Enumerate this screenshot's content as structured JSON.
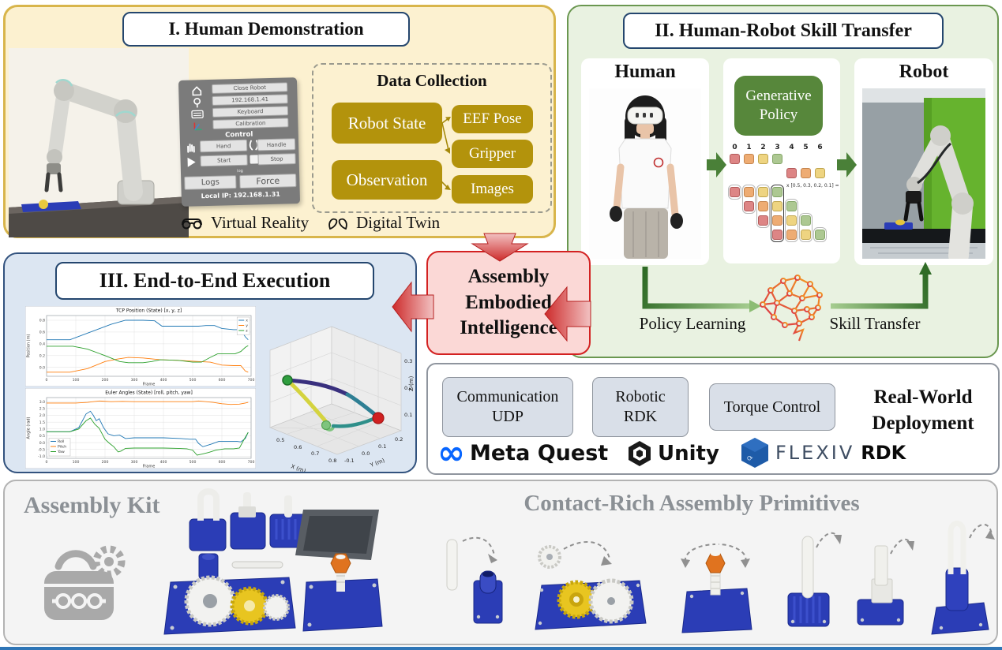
{
  "colors": {
    "panel1_bg": "#fcf1d0",
    "panel1_border": "#d8b54b",
    "panel2_bg": "#e9f2e1",
    "panel2_border": "#6a9750",
    "panel3_bg": "#dce6f2",
    "panel3_border": "#32527e",
    "assembly_bg": "#fbd8d6",
    "assembly_border": "#d32121",
    "gold_box": "#b3930c",
    "green_policy_box": "#57873b",
    "token_red": "#dd8585",
    "token_orange": "#eeac73",
    "token_yellow": "#eed481",
    "token_green": "#adc892",
    "deploy_module_bg": "#d9dfe8",
    "meta_blue": "#0866ff",
    "flexiv_blue": "#1e5ba8",
    "arrow_red": "#cd2b2b",
    "arrow_green_dark": "#33691e",
    "bottom_title_gray": "#8b9095"
  },
  "panel1": {
    "title": "I. Human Demonstration",
    "vr_panel": {
      "top_buttons": [
        "Close Robot",
        "192.168.1.41",
        "Keyboard",
        "Calibration"
      ],
      "control_label": "Control",
      "hand": "Hand",
      "handle": "Handle",
      "start": "Start",
      "stop": "Stop",
      "log_label": "log",
      "logs": "Logs",
      "force": "Force",
      "local_ip": "Local IP: 192.168.1.31"
    },
    "data_collection": {
      "title": "Data Collection",
      "robot_state": "Robot State",
      "eef_pose": "EEF Pose",
      "gripper": "Gripper",
      "observation": "Observation",
      "images": "Images"
    },
    "captions": {
      "virtual_reality": "Virtual Reality",
      "digital_twin": "Digital Twin"
    }
  },
  "panel2": {
    "title": "II. Human-Robot Skill Transfer",
    "human_label": "Human",
    "robot_label": "Robot",
    "generative_policy_lines": [
      "Generative",
      "Policy"
    ],
    "policy_diagram": {
      "indices": [
        "0",
        "1",
        "2",
        "3",
        "4",
        "5",
        "6"
      ],
      "top_row_colors": [
        "red",
        "orange",
        "yellow",
        "green"
      ],
      "second_row_colors": [
        "red",
        "orange",
        "yellow"
      ],
      "weights_text": "x [0.5, 0.3, 0.2, 0.1] =",
      "columns": [
        {
          "start": 0,
          "colors": [
            "red"
          ]
        },
        {
          "start": 0,
          "colors": [
            "orange",
            "red"
          ]
        },
        {
          "start": 0,
          "colors": [
            "yellow",
            "orange",
            "red"
          ]
        },
        {
          "start": 0,
          "colors": [
            "green",
            "yellow",
            "orange",
            "red"
          ],
          "highlight": true
        },
        {
          "start": 1,
          "colors": [
            "green",
            "yellow",
            "orange"
          ]
        },
        {
          "start": 2,
          "colors": [
            "green",
            "yellow"
          ]
        },
        {
          "start": 3,
          "colors": [
            "green"
          ]
        }
      ]
    },
    "policy_learning": "Policy Learning",
    "skill_transfer": "Skill Transfer"
  },
  "panel3": {
    "title": "III. End-to-End Execution"
  },
  "assembly_box": {
    "lines": [
      "Assembly",
      "Embodied",
      "Intelligence"
    ]
  },
  "deployment": {
    "modules": [
      {
        "lines": [
          "Communication",
          "UDP"
        ]
      },
      {
        "lines": [
          "Robotic",
          "RDK"
        ]
      },
      {
        "lines": [
          "Torque Control"
        ]
      }
    ],
    "label_lines": [
      "Real-World",
      "Deployment"
    ],
    "logos": {
      "meta": "Meta Quest",
      "unity": "Unity",
      "flexiv": "FLEXIV",
      "flexiv_rdk": "RDK"
    }
  },
  "bottom": {
    "assembly_kit_title": "Assembly Kit",
    "primitives_title": "Contact-Rich Assembly Primitives"
  },
  "chart_data": [
    {
      "id": "tcp",
      "type": "line",
      "title": "TCP Position (State) [x, y, z]",
      "xlabel": "Frame",
      "ylabel": "Position (m)",
      "xlim": [
        0,
        700
      ],
      "ylim": [
        -0.15,
        0.88
      ],
      "xticks": [
        0,
        100,
        200,
        300,
        400,
        500,
        600,
        700
      ],
      "yticks": [
        "0.0",
        "0.2",
        "0.4",
        "0.6",
        "0.8"
      ],
      "legend": "tr",
      "grid": true,
      "series": [
        {
          "name": "x",
          "color": "#1f77b4",
          "x": [
            0,
            80,
            150,
            220,
            270,
            330,
            370,
            395,
            450,
            520,
            545,
            575,
            600,
            640,
            665,
            680,
            690
          ],
          "y": [
            0.47,
            0.47,
            0.6,
            0.73,
            0.8,
            0.8,
            0.79,
            0.7,
            0.7,
            0.7,
            0.71,
            0.71,
            0.66,
            0.64,
            0.64,
            0.52,
            0.47
          ]
        },
        {
          "name": "y",
          "color": "#ff7f0e",
          "x": [
            0,
            80,
            140,
            200,
            240,
            280,
            330,
            390,
            450,
            520,
            560,
            600,
            640,
            665,
            680,
            690
          ],
          "y": [
            -0.08,
            -0.08,
            -0.02,
            0.1,
            0.14,
            0.17,
            0.16,
            0.13,
            0.12,
            0.1,
            0.09,
            0.04,
            0.03,
            0.03,
            -0.06,
            -0.08
          ]
        },
        {
          "name": "z",
          "color": "#2ca02c",
          "x": [
            0,
            90,
            140,
            200,
            250,
            280,
            330,
            360,
            390,
            450,
            500,
            530,
            560,
            585,
            620,
            645,
            665,
            680,
            690
          ],
          "y": [
            0.36,
            0.36,
            0.31,
            0.2,
            0.1,
            0.08,
            0.08,
            0.1,
            0.13,
            0.12,
            0.09,
            0.09,
            0.17,
            0.23,
            0.23,
            0.23,
            0.27,
            0.34,
            0.37
          ]
        }
      ]
    },
    {
      "id": "euler",
      "type": "line",
      "title": "Euler Angles (State) [roll, pitch, yaw]",
      "xlabel": "Frame",
      "ylabel": "Angle (rad)",
      "xlim": [
        0,
        700
      ],
      "ylim": [
        -1.15,
        3.3
      ],
      "xticks": [
        0,
        100,
        200,
        300,
        400,
        500,
        600,
        700
      ],
      "yticks": [
        "-1.0",
        "-0.5",
        "0.0",
        "0.5",
        "1.0",
        "1.5",
        "2.0",
        "2.5",
        "3.0"
      ],
      "legend": "bl",
      "grid": true,
      "series": [
        {
          "name": "Roll",
          "color": "#1f77b4",
          "x": [
            0,
            80,
            110,
            135,
            150,
            160,
            170,
            180,
            195,
            210,
            230,
            250,
            270,
            300,
            350,
            400,
            460,
            490,
            510,
            520,
            535,
            550,
            565,
            590,
            620,
            650,
            665,
            680,
            690
          ],
          "y": [
            0.8,
            0.8,
            1.1,
            2.1,
            2.3,
            2.0,
            1.6,
            1.75,
            1.1,
            0.65,
            0.5,
            0.55,
            0.3,
            0.35,
            0.35,
            0.35,
            0.3,
            0.25,
            0.25,
            -0.05,
            -0.3,
            -0.2,
            -0.1,
            0.1,
            0.1,
            0.1,
            0.05,
            0.3,
            0.75
          ]
        },
        {
          "name": "Pitch",
          "color": "#ff7f0e",
          "x": [
            0,
            100,
            140,
            180,
            220,
            260,
            300,
            350,
            400,
            450,
            500,
            520,
            545,
            570,
            600,
            630,
            660,
            680,
            690
          ],
          "y": [
            2.9,
            2.9,
            2.95,
            3.05,
            3.0,
            3.02,
            3.0,
            3.0,
            3.0,
            3.0,
            3.0,
            3.05,
            3.0,
            2.95,
            2.85,
            2.8,
            2.82,
            2.9,
            2.95
          ]
        },
        {
          "name": "Yaw",
          "color": "#2ca02c",
          "x": [
            0,
            80,
            110,
            135,
            150,
            165,
            180,
            200,
            215,
            230,
            245,
            255,
            270,
            300,
            350,
            400,
            450,
            480,
            500,
            515,
            530,
            555,
            580,
            610,
            640,
            660,
            675,
            690
          ],
          "y": [
            0.8,
            0.8,
            1.0,
            1.6,
            1.8,
            1.35,
            1.05,
            0.25,
            -0.05,
            -0.3,
            -0.68,
            -0.62,
            -0.42,
            -0.4,
            -0.4,
            -0.4,
            -0.42,
            -0.45,
            -0.55,
            -0.92,
            -0.85,
            -0.72,
            -0.55,
            -0.45,
            -0.45,
            -0.4,
            0.2,
            0.75
          ]
        }
      ]
    },
    {
      "id": "traj3d",
      "type": "line3d",
      "colormap": "viridis",
      "xlabel": "X (m)",
      "ylabel": "Y (m)",
      "zlabel": "Z (m)",
      "xticks": [
        "0.5",
        "0.6",
        "0.7",
        "0.8"
      ],
      "yticks": [
        "-0.1",
        "0.0",
        "0.1",
        "0.2"
      ],
      "zticks": [
        "0.1",
        "0.2",
        "0.3"
      ],
      "start_marker": {
        "color": "green",
        "x": 0.5,
        "y": 0.2,
        "z": 0.3
      },
      "end_marker": {
        "color": "red",
        "x": 0.78,
        "y": 0.02,
        "z": 0.07
      },
      "waypoints": [
        [
          0.5,
          0.2,
          0.3
        ],
        [
          0.58,
          0.15,
          0.29
        ],
        [
          0.66,
          0.08,
          0.27
        ],
        [
          0.72,
          0.02,
          0.2
        ],
        [
          0.66,
          -0.02,
          0.1
        ],
        [
          0.68,
          0.0,
          0.09
        ],
        [
          0.78,
          0.02,
          0.07
        ]
      ]
    }
  ]
}
